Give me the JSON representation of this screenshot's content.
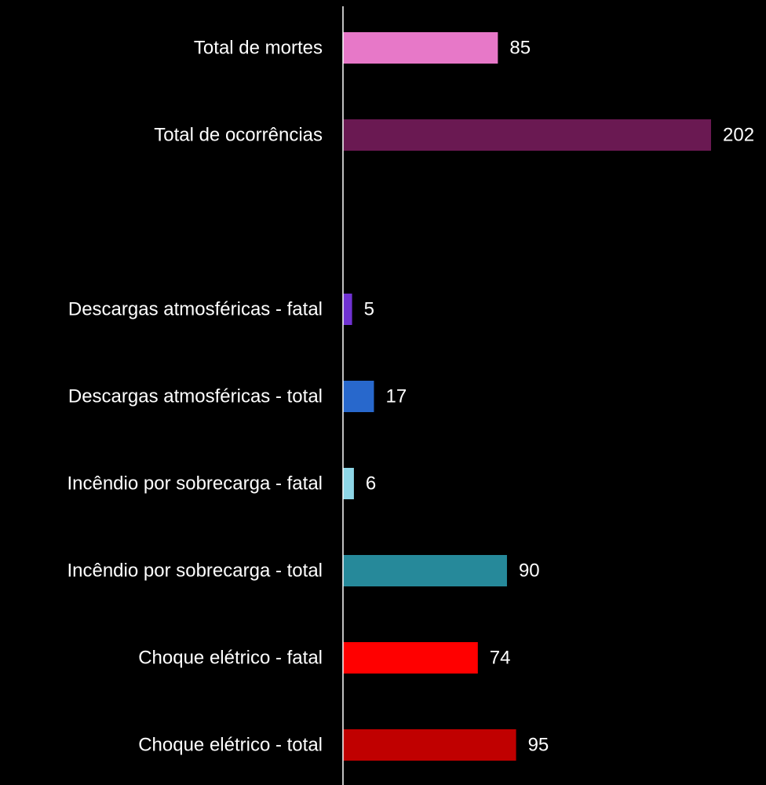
{
  "chart_data": {
    "type": "bar",
    "orientation": "horizontal",
    "categories": [
      "Total de mortes",
      "Total de ocorrências",
      null,
      "Descargas atmosféricas - fatal",
      "Descargas atmosféricas - total",
      "Incêndio por sobrecarga - fatal",
      "Incêndio por sobrecarga - total",
      "Choque elétrico - fatal",
      "Choque elétrico - total"
    ],
    "values": [
      85,
      202,
      null,
      5,
      17,
      6,
      90,
      74,
      95
    ],
    "colors": [
      "#e778c8",
      "#6a1952",
      null,
      "#7032d2",
      "#2868cc",
      "#8ed6e6",
      "#26899a",
      "#ff0000",
      "#c00000"
    ]
  }
}
